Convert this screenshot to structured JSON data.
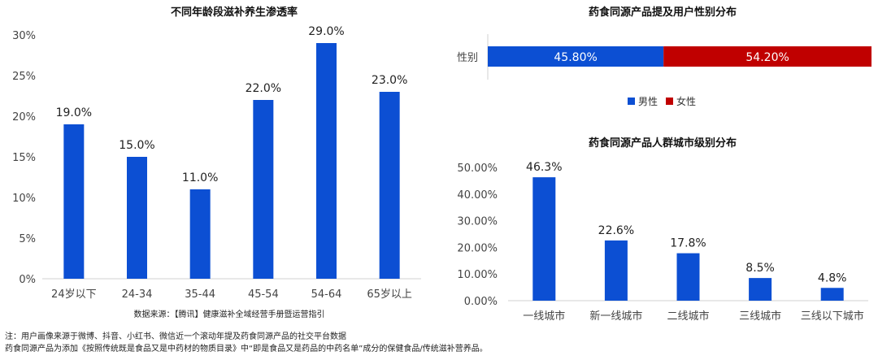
{
  "colors": {
    "blue": "#0c4fd3",
    "red": "#c00000",
    "axis": "#d0d0d0"
  },
  "left_chart": {
    "title": "不同年龄段滋补养生渗透率",
    "source": "数据来源：【腾讯】健康滋补全域经营手册暨运营指引"
  },
  "gender_chart": {
    "title": "药食同源产品提及用户性别分布",
    "category_label": "性别",
    "legend": [
      "男性",
      "女性"
    ]
  },
  "city_chart": {
    "title": "药食同源产品人群城市级别分布"
  },
  "notes": {
    "line1": "注：用户画像来源于微博、抖音、小红书、微信近一个滚动年提及药食同源产品的社交平台数据",
    "line2": "药食同源产品为添加《按照传统既是食品又是中药材的物质目录》中“即是食品又是药品的中药名单”成分的保健食品/传统滋补营养品。"
  },
  "chart_data": [
    {
      "type": "bar",
      "title": "不同年龄段滋补养生渗透率",
      "categories": [
        "24岁以下",
        "24-34",
        "35-44",
        "45-54",
        "54-64",
        "65岁以上"
      ],
      "values": [
        19.0,
        15.0,
        11.0,
        22.0,
        29.0,
        23.0
      ],
      "value_labels": [
        "19.0%",
        "15.0%",
        "11.0%",
        "22.0%",
        "29.0%",
        "23.0%"
      ],
      "ylim": [
        0,
        30
      ],
      "yticks": [
        "0%",
        "5%",
        "10%",
        "15%",
        "20%",
        "25%",
        "30%"
      ],
      "grid": false
    },
    {
      "type": "bar",
      "orientation": "horizontal-stacked",
      "title": "药食同源产品提及用户性别分布",
      "categories": [
        "性别"
      ],
      "series": [
        {
          "name": "男性",
          "values": [
            45.8
          ],
          "label": "45.80%",
          "color": "#0c4fd3"
        },
        {
          "name": "女性",
          "values": [
            54.2
          ],
          "label": "54.20%",
          "color": "#c00000"
        }
      ],
      "legend": "bottom"
    },
    {
      "type": "bar",
      "title": "药食同源产品人群城市级别分布",
      "categories": [
        "一线城市",
        "新一线城市",
        "二线城市",
        "三线城市",
        "三线以下城市"
      ],
      "values": [
        46.3,
        22.6,
        17.8,
        8.5,
        4.8
      ],
      "value_labels": [
        "46.3%",
        "22.6%",
        "17.8%",
        "8.5%",
        "4.8%"
      ],
      "ylim": [
        0,
        50
      ],
      "yticks": [
        "0.00%",
        "10.00%",
        "20.00%",
        "30.00%",
        "40.00%",
        "50.00%"
      ],
      "grid": false
    }
  ]
}
